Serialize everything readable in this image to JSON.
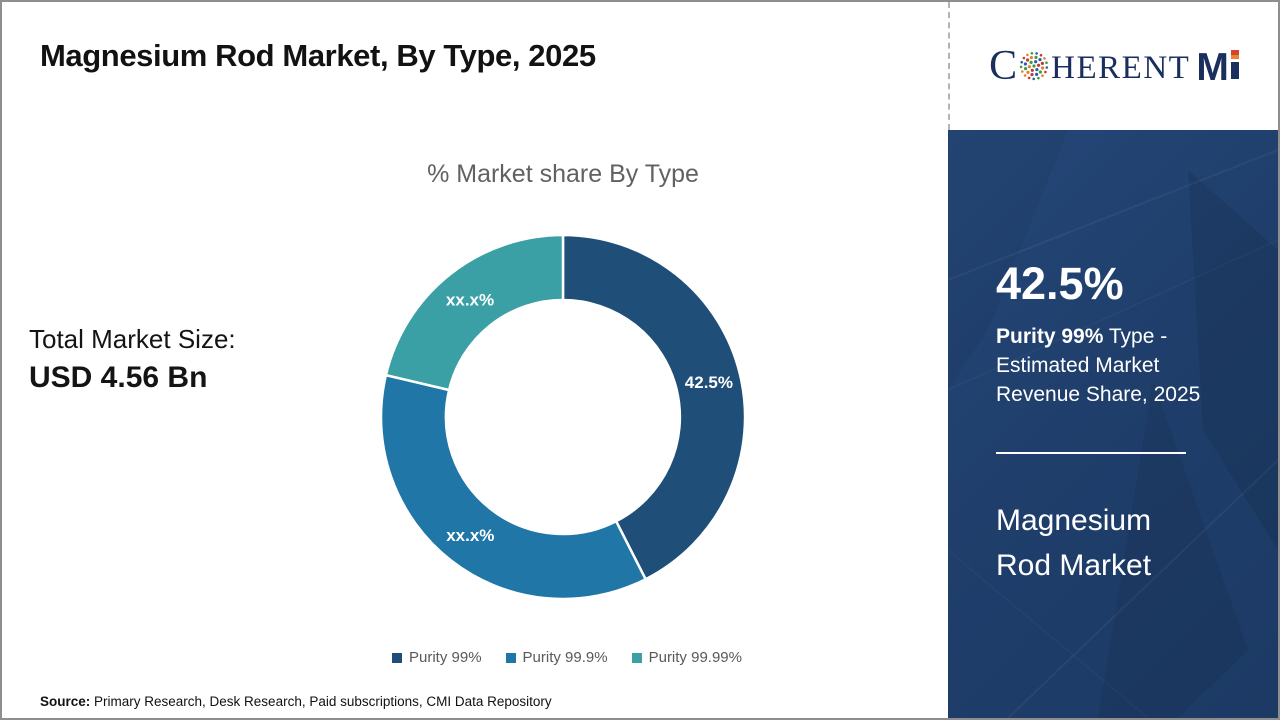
{
  "page": {
    "title": "Magnesium Rod Market, By Type, 2025",
    "source_label": "Source:",
    "source_text": " Primary Research, Desk Research, Paid subscriptions, CMI Data Repository"
  },
  "brand": {
    "part_c": "C",
    "part_herent": "HERENT",
    "part_m": "M",
    "name": "CoherentMI",
    "navy": "#1b2f5e",
    "accent_orange": "#e8852e"
  },
  "left_panel": {
    "total_label": "Total Market Size:",
    "total_value": "USD 4.56 Bn"
  },
  "chart_data": {
    "type": "pie",
    "donut": true,
    "title": "% Market share By Type",
    "categories": [
      "Purity 99%",
      "Purity 99.9%",
      "Purity 99.99%"
    ],
    "values": [
      42.5,
      36.2,
      21.3
    ],
    "display_labels": [
      "42.5%",
      "xx.x%",
      "xx.x%"
    ],
    "colors": [
      "#1f4e79",
      "#2076a7",
      "#3ba0a5"
    ],
    "legend_position": "bottom",
    "start_angle_deg": 0,
    "direction": "clockwise",
    "note": "Only the 42.5% slice is labeled numerically; the other two slices are masked as xx.x% (arc sizes estimated from pixels)"
  },
  "sidebar": {
    "stat_value": "42.5%",
    "stat_desc_bold": "Purity 99%",
    "stat_desc_rest": " Type - Estimated Market Revenue Share, 2025",
    "market_name": "Magnesium Rod Market",
    "bg_color": "#1f3e6b"
  }
}
